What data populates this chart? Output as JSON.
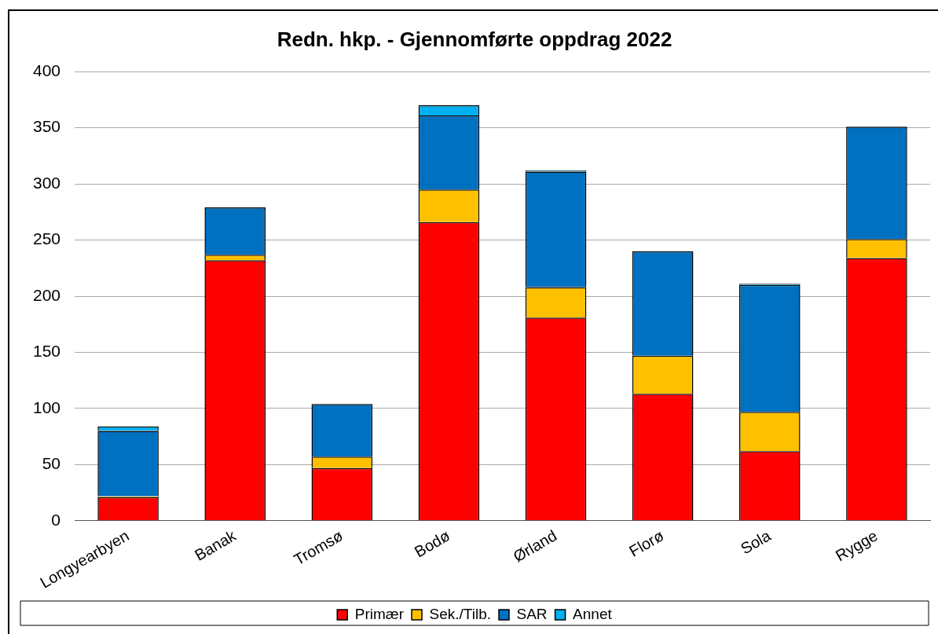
{
  "chart_data": {
    "type": "bar",
    "title": "Redn. hkp. - Gjennomførte oppdrag 2022",
    "stacked": true,
    "categories": [
      "Longyearbyen",
      "Banak",
      "Tromsø",
      "Bodø",
      "Ørland",
      "Florø",
      "Sola",
      "Rygge"
    ],
    "series": [
      {
        "name": "Primær",
        "color": "#ff0000",
        "values": [
          21,
          232,
          47,
          266,
          181,
          113,
          62,
          234
        ]
      },
      {
        "name": "Sek./Tilb.",
        "color": "#ffc000",
        "values": [
          1,
          5,
          10,
          29,
          27,
          34,
          35,
          17
        ]
      },
      {
        "name": "SAR",
        "color": "#0070c0",
        "values": [
          58,
          42,
          47,
          66,
          103,
          93,
          113,
          100
        ]
      },
      {
        "name": "Annet",
        "color": "#00b0f0",
        "values": [
          4,
          0,
          0,
          9,
          1,
          0,
          1,
          0
        ]
      }
    ],
    "ylim": [
      0,
      400
    ],
    "yticks": [
      0,
      50,
      100,
      150,
      200,
      250,
      300,
      350,
      400
    ],
    "grid": "y",
    "legend": "bottom"
  }
}
